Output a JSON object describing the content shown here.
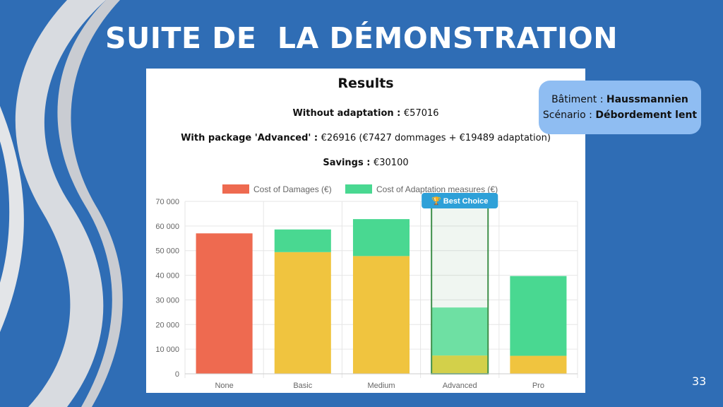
{
  "slide": {
    "title": "SUITE DE  LA DÉMONSTRATION",
    "page_number": "33"
  },
  "info_box": {
    "building_label": "Bâtiment : ",
    "building_value": "Haussmannien",
    "scenario_label": "Scénario : ",
    "scenario_value": "Débordement lent",
    "color": "#8fbdf2"
  },
  "results": {
    "title": "Results",
    "without_label": "Without adaptation : ",
    "without_value": "€57016",
    "with_label": "With package 'Advanced' : ",
    "with_value": "€26916 (€7427 dommages + €19489 adaptation)",
    "savings_label": "Savings : ",
    "savings_value": "€30100"
  },
  "chart_data": {
    "type": "bar",
    "stacked": true,
    "categories": [
      "None",
      "Basic",
      "Medium",
      "Advanced",
      "Pro"
    ],
    "series": [
      {
        "name": "Cost of Damages (€)",
        "values": [
          57016,
          49400,
          47800,
          7427,
          7300
        ],
        "color": "#f0c43f",
        "legend_color": "#ee6a50"
      },
      {
        "name": "Cost of Adaptation measures (€)",
        "values": [
          0,
          9200,
          15000,
          19489,
          32400
        ],
        "color": "#49d891"
      }
    ],
    "none_bar_color": "#ee6a50",
    "highlight": {
      "category": "Advanced",
      "badge": "🏆 Best Choice",
      "damage_color": "#e0d64a",
      "adaptation_color": "#72e8ab",
      "border_color": "#3f8f4a",
      "badge_color": "#2ea0d8"
    },
    "ylim": [
      0,
      70000
    ],
    "yticks": [
      "0",
      "10 000",
      "20 000",
      "30 000",
      "40 000",
      "50 000",
      "60 000",
      "70 000"
    ],
    "ytick_values": [
      0,
      10000,
      20000,
      30000,
      40000,
      50000,
      60000,
      70000
    ],
    "legend_position": "top",
    "grid": true
  }
}
